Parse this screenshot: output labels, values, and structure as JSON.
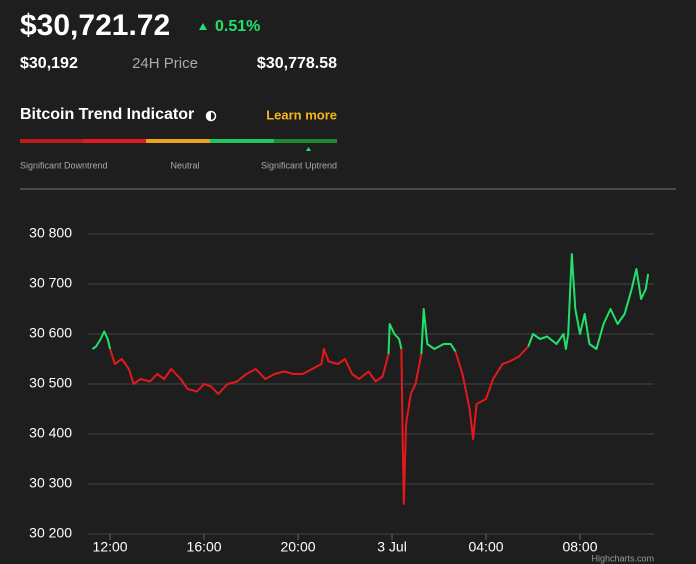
{
  "header": {
    "price": "$30,721.72",
    "change": "0.51%",
    "low": "$30,192",
    "range_label": "24H Price",
    "high": "$30,778.58"
  },
  "trend": {
    "title": "Bitcoin Trend Indicator",
    "link": "Learn more",
    "labels": [
      "Significant Downtrend",
      "Neutral",
      "Significant Uptrend"
    ]
  },
  "chart_data": {
    "type": "line",
    "credit": "Highcharts.com",
    "x": [
      11.25,
      11.4,
      11.6,
      11.75,
      11.9,
      12.0,
      12.2,
      12.5,
      12.8,
      13.0,
      13.3,
      13.7,
      14.0,
      14.3,
      14.6,
      15.0,
      15.3,
      15.7,
      16.0,
      16.3,
      16.6,
      17.0,
      17.4,
      17.8,
      18.2,
      18.6,
      19.0,
      19.4,
      19.8,
      20.2,
      20.6,
      21.0,
      21.1,
      21.3,
      21.7,
      22.0,
      22.3,
      22.6,
      23.0,
      23.3,
      23.6,
      23.85,
      23.9,
      24.1,
      24.3,
      24.4,
      24.45,
      24.5,
      24.6,
      24.8,
      25.0,
      25.25,
      25.35,
      25.5,
      25.8,
      26.2,
      26.5,
      26.7,
      27.0,
      27.3,
      27.45,
      27.6,
      28.0,
      28.3,
      28.7,
      29.0,
      29.4,
      29.8,
      30.0,
      30.3,
      30.6,
      31.0,
      31.3,
      31.4,
      31.5,
      31.65,
      31.8,
      32.0,
      32.2,
      32.4,
      32.7,
      33.0,
      33.3,
      33.6,
      33.9,
      34.2,
      34.4,
      34.6,
      34.8,
      34.9
    ],
    "series": [
      {
        "color": "#e3191c",
        "values": [
          null,
          null,
          null,
          null,
          null,
          30570,
          30540,
          30550,
          30530,
          30500,
          30510,
          30505,
          30520,
          30510,
          30530,
          30510,
          30490,
          30485,
          30500,
          30495,
          30480,
          30500,
          30505,
          30520,
          30530,
          30510,
          30520,
          30525,
          30520,
          30520,
          30530,
          30540,
          30570,
          30545,
          30540,
          30550,
          30520,
          30510,
          30525,
          30505,
          30515,
          30560,
          null,
          null,
          null,
          30570,
          30400,
          30260,
          30420,
          30480,
          30500,
          30560,
          null,
          null,
          null,
          null,
          null,
          30565,
          30520,
          30450,
          30390,
          30460,
          30470,
          30510,
          30540,
          30545,
          30555,
          30575,
          null,
          null,
          null,
          null,
          null,
          null,
          null,
          null,
          null,
          null,
          null,
          null,
          null,
          null,
          null,
          null,
          null,
          null,
          null,
          null,
          null,
          null
        ]
      },
      {
        "color": "#22e06a",
        "values": [
          30570,
          30575,
          30590,
          30605,
          30590,
          30570,
          null,
          null,
          null,
          null,
          null,
          null,
          null,
          null,
          null,
          null,
          null,
          null,
          null,
          null,
          null,
          null,
          null,
          null,
          null,
          null,
          null,
          null,
          null,
          null,
          null,
          null,
          null,
          null,
          null,
          null,
          null,
          null,
          null,
          null,
          null,
          30560,
          30620,
          30600,
          30590,
          30570,
          null,
          null,
          null,
          null,
          null,
          30560,
          30650,
          30580,
          30570,
          30580,
          30580,
          30565,
          null,
          null,
          null,
          null,
          null,
          null,
          null,
          null,
          null,
          30575,
          30600,
          30590,
          30595,
          30580,
          30600,
          30570,
          30600,
          30760,
          30650,
          30600,
          30640,
          30580,
          30570,
          30620,
          30650,
          30620,
          30640,
          30690,
          30730,
          30670,
          30690,
          30720
        ]
      }
    ],
    "xlim": [
      11.06,
      35.15
    ],
    "xticks": [
      {
        "value": 12,
        "label": "12:00"
      },
      {
        "value": 16,
        "label": "16:00"
      },
      {
        "value": 20,
        "label": "20:00"
      },
      {
        "value": 24,
        "label": "3 Jul"
      },
      {
        "value": 28,
        "label": "04:00"
      },
      {
        "value": 32,
        "label": "08:00"
      }
    ],
    "ylim": [
      30200,
      30800
    ],
    "yticks": [
      {
        "value": 30200,
        "label": "30 200"
      },
      {
        "value": 30300,
        "label": "30 300"
      },
      {
        "value": 30400,
        "label": "30 400"
      },
      {
        "value": 30500,
        "label": "30 500"
      },
      {
        "value": 30600,
        "label": "30 600"
      },
      {
        "value": 30700,
        "label": "30 700"
      },
      {
        "value": 30800,
        "label": "30 800"
      }
    ],
    "grid": true
  }
}
